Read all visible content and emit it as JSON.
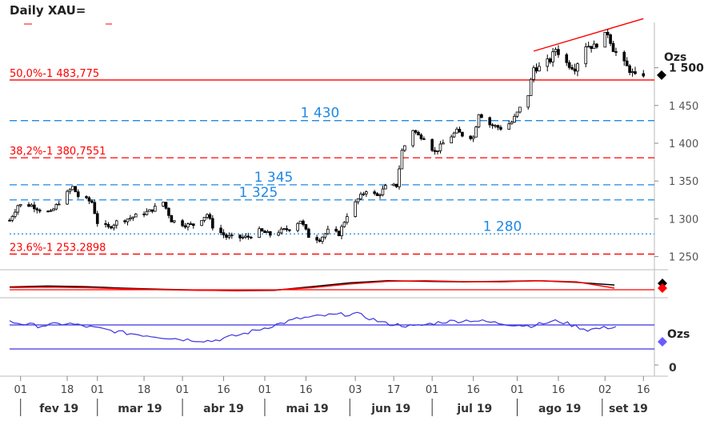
{
  "title": "Daily XAU=",
  "price_unit": "Ozs",
  "sub_unit": "Ozs",
  "sub_zero_label": "0",
  "price_ticks": [
    {
      "value": 1500,
      "label": "1 500"
    },
    {
      "value": 1450,
      "label": "1 450"
    },
    {
      "value": 1400,
      "label": "1 400"
    },
    {
      "value": 1350,
      "label": "1 350"
    },
    {
      "value": 1300,
      "label": "1 300"
    },
    {
      "value": 1250,
      "label": "1 250"
    }
  ],
  "x_day_ticks": [
    {
      "label": "01",
      "date": "2019-02-01"
    },
    {
      "label": "18",
      "date": "2019-02-18"
    },
    {
      "label": "01",
      "date": "2019-03-01"
    },
    {
      "label": "18",
      "date": "2019-03-18"
    },
    {
      "label": "01",
      "date": "2019-04-01"
    },
    {
      "label": "16",
      "date": "2019-04-16"
    },
    {
      "label": "01",
      "date": "2019-05-01"
    },
    {
      "label": "16",
      "date": "2019-05-16"
    },
    {
      "label": "03",
      "date": "2019-06-03"
    },
    {
      "label": "17",
      "date": "2019-06-17"
    },
    {
      "label": "01",
      "date": "2019-07-01"
    },
    {
      "label": "16",
      "date": "2019-07-16"
    },
    {
      "label": "01",
      "date": "2019-08-01"
    },
    {
      "label": "16",
      "date": "2019-08-16"
    },
    {
      "label": "02",
      "date": "2019-09-02"
    },
    {
      "label": "16",
      "date": "2019-09-16"
    }
  ],
  "x_month_labels": [
    "fev 19",
    "mar 19",
    "abr 19",
    "mai 19",
    "jun 19",
    "jul 19",
    "ago 19",
    "set 19"
  ],
  "colors": {
    "fib": "#ff0000",
    "support": "#1e88e5",
    "oscillator": "#3a34e0",
    "candle": "#000000",
    "trend": "#ff0000"
  },
  "chart_data": [
    {
      "type": "candlestick",
      "series_name": "XAU=",
      "period": "Daily",
      "x_range": [
        "2019-01-28",
        "2019-09-20"
      ],
      "ylim": [
        1240,
        1560
      ],
      "horizontal_levels": [
        {
          "label": "50,0%-1 483,775",
          "value": 1483.775,
          "style": "solid",
          "color": "#ff0000"
        },
        {
          "label": "38,2%-1 380,7551",
          "value": 1380.7551,
          "style": "dashed",
          "color": "#ff0000"
        },
        {
          "label": "23.6%-1 253.2898",
          "value": 1253.2898,
          "style": "dashed",
          "color": "#ff0000"
        },
        {
          "label": "1 430",
          "value": 1430,
          "style": "dashed",
          "color": "#1e88e5"
        },
        {
          "label": "1 345",
          "value": 1345,
          "style": "dashed",
          "color": "#1e88e5"
        },
        {
          "label": "1 325",
          "value": 1325,
          "style": "dashed",
          "color": "#1e88e5"
        },
        {
          "label": "1 280",
          "value": 1280,
          "style": "dotted",
          "color": "#1e88e5"
        }
      ],
      "trendline": {
        "from": {
          "date": "2019-08-07",
          "value": 1522
        },
        "to": {
          "date": "2019-09-16",
          "value": 1565
        },
        "color": "#ff0000"
      },
      "last_close": 1492,
      "price_path": [
        [
          "2019-01-28",
          1298
        ],
        [
          "2019-01-31",
          1318
        ],
        [
          "2019-02-05",
          1318
        ],
        [
          "2019-02-08",
          1312
        ],
        [
          "2019-02-12",
          1308
        ],
        [
          "2019-02-15",
          1322
        ],
        [
          "2019-02-20",
          1342
        ],
        [
          "2019-02-22",
          1330
        ],
        [
          "2019-02-27",
          1322
        ],
        [
          "2019-03-01",
          1295
        ],
        [
          "2019-03-05",
          1288
        ],
        [
          "2019-03-08",
          1296
        ],
        [
          "2019-03-12",
          1300
        ],
        [
          "2019-03-15",
          1304
        ],
        [
          "2019-03-20",
          1310
        ],
        [
          "2019-03-25",
          1322
        ],
        [
          "2019-03-28",
          1298
        ],
        [
          "2019-04-02",
          1292
        ],
        [
          "2019-04-05",
          1292
        ],
        [
          "2019-04-10",
          1306
        ],
        [
          "2019-04-12",
          1290
        ],
        [
          "2019-04-17",
          1276
        ],
        [
          "2019-04-22",
          1275
        ],
        [
          "2019-04-25",
          1276
        ],
        [
          "2019-04-29",
          1284
        ],
        [
          "2019-05-03",
          1279
        ],
        [
          "2019-05-06",
          1283
        ],
        [
          "2019-05-10",
          1287
        ],
        [
          "2019-05-14",
          1298
        ],
        [
          "2019-05-17",
          1277
        ],
        [
          "2019-05-21",
          1273
        ],
        [
          "2019-05-24",
          1284
        ],
        [
          "2019-05-28",
          1280
        ],
        [
          "2019-05-31",
          1305
        ],
        [
          "2019-06-04",
          1326
        ],
        [
          "2019-06-07",
          1338
        ],
        [
          "2019-06-11",
          1330
        ],
        [
          "2019-06-14",
          1342
        ],
        [
          "2019-06-18",
          1344
        ],
        [
          "2019-06-20",
          1390
        ],
        [
          "2019-06-24",
          1418
        ],
        [
          "2019-06-26",
          1410
        ],
        [
          "2019-06-28",
          1408
        ],
        [
          "2019-07-02",
          1388
        ],
        [
          "2019-07-05",
          1400
        ],
        [
          "2019-07-10",
          1416
        ],
        [
          "2019-07-12",
          1411
        ],
        [
          "2019-07-16",
          1408
        ],
        [
          "2019-07-18",
          1440
        ],
        [
          "2019-07-22",
          1425
        ],
        [
          "2019-07-26",
          1420
        ],
        [
          "2019-07-30",
          1428
        ],
        [
          "2019-08-01",
          1440
        ],
        [
          "2019-08-05",
          1465
        ],
        [
          "2019-08-07",
          1500
        ],
        [
          "2019-08-09",
          1500
        ],
        [
          "2019-08-13",
          1510
        ],
        [
          "2019-08-15",
          1525
        ],
        [
          "2019-08-19",
          1506
        ],
        [
          "2019-08-22",
          1500
        ],
        [
          "2019-08-26",
          1530
        ],
        [
          "2019-08-29",
          1528
        ],
        [
          "2019-09-03",
          1546
        ],
        [
          "2019-09-05",
          1525
        ],
        [
          "2019-09-09",
          1505
        ],
        [
          "2019-09-11",
          1497
        ],
        [
          "2019-09-13",
          1488
        ],
        [
          "2019-09-16",
          1492
        ]
      ]
    },
    {
      "type": "line",
      "panel": "indicator-1",
      "series": [
        {
          "color": "#000000",
          "values": [
            0.42,
            0.5,
            0.45,
            0.3,
            0.2,
            0.12,
            0.05,
            0.1,
            0.45,
            0.8,
            1.0,
            0.95,
            0.9,
            0.95,
            1.0,
            0.85,
            0.6
          ]
        },
        {
          "color": "#ff0000",
          "values": [
            0.36,
            0.4,
            0.35,
            0.25,
            0.16,
            0.1,
            0.08,
            0.12,
            0.35,
            0.7,
            0.95,
            1.0,
            0.92,
            0.9,
            1.0,
            0.9,
            0.3
          ]
        }
      ]
    },
    {
      "type": "line",
      "panel": "indicator-2",
      "series_color": "#3a34e0",
      "bands": "two horizontal lines",
      "values": [
        0.75,
        0.62,
        0.7,
        0.55,
        0.4,
        0.3,
        0.2,
        0.15,
        0.35,
        0.6,
        0.85,
        0.95,
        1.0,
        0.7,
        0.6,
        0.75,
        0.8,
        0.7,
        0.62,
        0.78,
        0.5,
        0.6
      ]
    }
  ],
  "markers": {
    "main_last": "black diamond",
    "indicator1_last": "red-black diamond",
    "indicator2_last": "blue diamond"
  }
}
